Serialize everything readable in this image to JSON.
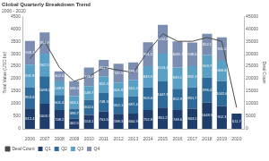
{
  "chart_data": {
    "type": "bar",
    "title": "Global Quarterly Breakdown Trend",
    "subtitle": "2006 - 2020",
    "y_label": "Total Value (USD bn)",
    "y2_label": "Deal Count",
    "categories": [
      "2006",
      "2007",
      "2008",
      "2009",
      "2010",
      "2011",
      "2012",
      "2013",
      "2014",
      "2015",
      "2016",
      "2017",
      "2018",
      "2019",
      "2020"
    ],
    "stacked": true,
    "data_labels": true,
    "legend": "bottom",
    "grid": false,
    "ylim": [
      0,
      4500
    ],
    "yticks": [
      0,
      500,
      1000,
      1500,
      2000,
      2500,
      3000,
      3500,
      4000,
      4500
    ],
    "y2lim": [
      0,
      45000
    ],
    "y2ticks": [
      0,
      5000,
      10000,
      15000,
      20000,
      25000,
      30000,
      35000,
      40000,
      45000
    ],
    "series": [
      {
        "name": "Q1",
        "color": "#1f3d6b",
        "values": [
          812.4,
          1003.7,
          748.2,
          402.5,
          553.1,
          701.6,
          598.3,
          604.9,
          752.8,
          851.2,
          748.6,
          803.5,
          1048.9,
          902.3,
          611.7
        ]
      },
      {
        "name": "Q2",
        "color": "#2f6b9a",
        "values": [
          853.6,
          1098.2,
          601.4,
          398.7,
          602.5,
          748.3,
          652.1,
          697.4,
          903.6,
          1047.8,
          852.9,
          851.7,
          998.4,
          1002.6,
          null
        ]
      },
      {
        "name": "Q3",
        "color": "#5a9fc4",
        "values": [
          901.8,
          902.5,
          548.9,
          503.1,
          549.7,
          652.4,
          601.8,
          651.2,
          849.5,
          1103.4,
          849.1,
          852.3,
          903.7,
          848.8,
          null
        ]
      },
      {
        "name": "Q4",
        "color": "#7b8db0",
        "values": [
          948.3,
          851.9,
          402.6,
          598.4,
          748.2,
          651.9,
          749.5,
          698.7,
          951.2,
          1152.6,
          1048.7,
          948.6,
          852.1,
          901.5,
          null
        ]
      },
      {
        "name": "Deal Count",
        "type": "line",
        "axis": "y2",
        "color": "#4a4a4a",
        "values": [
          28000,
          35000,
          24500,
          19000,
          21000,
          24500,
          23500,
          22500,
          31000,
          38000,
          35000,
          35000,
          36500,
          35000,
          8500
        ]
      }
    ]
  }
}
